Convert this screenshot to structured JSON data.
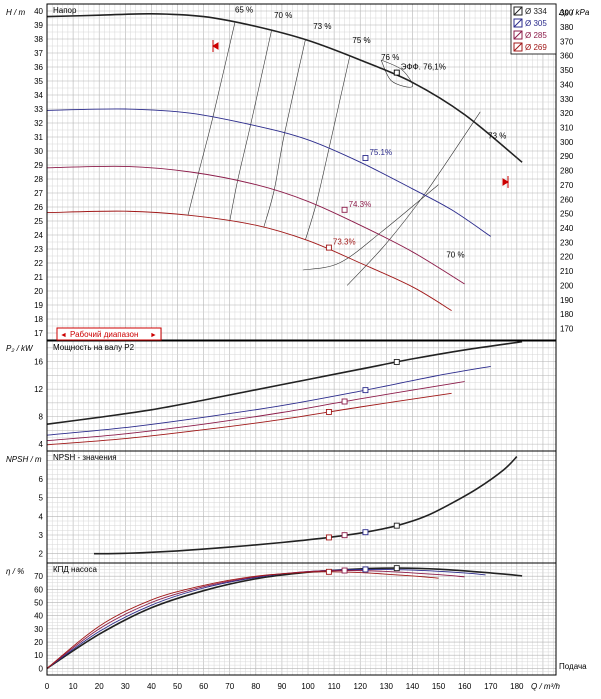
{
  "chart_data": [
    {
      "type": "line",
      "title": "Напор",
      "ylabel": "H / m",
      "ylabel_right": "Δp / kPa",
      "ylim": [
        16.5,
        40.5
      ],
      "ylim_right": [
        162,
        396
      ],
      "y_ticks": [
        17,
        18,
        19,
        20,
        21,
        22,
        23,
        24,
        25,
        26,
        27,
        28,
        29,
        30,
        31,
        32,
        33,
        34,
        35,
        36,
        37,
        38,
        39,
        40
      ],
      "y_ticks_right": [
        170,
        180,
        190,
        200,
        210,
        220,
        230,
        240,
        250,
        260,
        270,
        280,
        290,
        300,
        310,
        320,
        330,
        340,
        350,
        360,
        370,
        380,
        390
      ],
      "grid": true,
      "legend_position": "top-right",
      "legend": [
        {
          "label": "Ø 334",
          "color": "#222222"
        },
        {
          "label": "Ø 305",
          "color": "#2b2b8c"
        },
        {
          "label": "Ø 285",
          "color": "#8c1c4a"
        },
        {
          "label": "Ø 269",
          "color": "#a01818"
        }
      ],
      "series": [
        {
          "name": "Ø 334",
          "color": "#222222",
          "x": [
            0,
            20,
            40,
            60,
            80,
            100,
            120,
            140,
            160,
            182
          ],
          "y": [
            39.6,
            39.7,
            39.8,
            39.6,
            38.9,
            37.9,
            36.5,
            34.9,
            32.6,
            29.2
          ]
        },
        {
          "name": "Ø 305",
          "color": "#2b2b8c",
          "x": [
            0,
            30,
            55,
            80,
            100,
            120,
            140,
            155,
            170
          ],
          "y": [
            32.9,
            33.0,
            32.7,
            31.8,
            30.8,
            29.2,
            27.3,
            25.8,
            23.9
          ]
        },
        {
          "name": "Ø 285",
          "color": "#8c1c4a",
          "x": [
            0,
            30,
            55,
            80,
            100,
            120,
            140,
            160
          ],
          "y": [
            28.8,
            28.9,
            28.5,
            27.6,
            26.4,
            24.7,
            22.8,
            20.5
          ]
        },
        {
          "name": "Ø 269",
          "color": "#a01818",
          "x": [
            0,
            30,
            55,
            80,
            100,
            120,
            140,
            155
          ],
          "y": [
            25.6,
            25.7,
            25.4,
            24.7,
            23.6,
            22.0,
            20.3,
            18.6
          ]
        }
      ],
      "efficiency_labels": [
        {
          "text": "65 %",
          "x": 72,
          "y": 39.9
        },
        {
          "text": "70 %",
          "x": 87,
          "y": 39.5
        },
        {
          "text": "73 %",
          "x": 102,
          "y": 38.7
        },
        {
          "text": "75 %",
          "x": 117,
          "y": 37.7
        },
        {
          "text": "76 %",
          "x": 128,
          "y": 36.5
        },
        {
          "text": "73 %",
          "x": 169,
          "y": 30.9
        },
        {
          "text": "70 %",
          "x": 153,
          "y": 22.4
        }
      ],
      "bep_labels": [
        {
          "text": "ЭФФ. 76,1%",
          "x": 134,
          "y": 35.6
        },
        {
          "text": "75.1%",
          "x": 122,
          "y": 29.5
        },
        {
          "text": "74.3%",
          "x": 114,
          "y": 25.8
        },
        {
          "text": "73.3%",
          "x": 108,
          "y": 23.1
        }
      ],
      "operating_range_label": "Рабочий диапазон",
      "operating_range_arrows": [
        "◄",
        "►"
      ]
    },
    {
      "type": "line",
      "title": "Мощность на валу P2",
      "ylabel": "P₂ / kW",
      "ylim": [
        3,
        19
      ],
      "y_ticks": [
        4,
        8,
        12,
        16
      ],
      "grid": true,
      "series": [
        {
          "name": "Ø 334",
          "color": "#222222",
          "x": [
            0,
            20,
            40,
            60,
            80,
            100,
            120,
            140,
            160,
            182
          ],
          "y": [
            6.9,
            7.9,
            9.0,
            10.4,
            11.9,
            13.4,
            14.9,
            16.4,
            17.7,
            18.9
          ]
        },
        {
          "name": "Ø 305",
          "color": "#2b2b8c",
          "x": [
            0,
            30,
            60,
            90,
            120,
            150,
            170
          ],
          "y": [
            5.3,
            6.4,
            7.9,
            9.6,
            11.7,
            14.0,
            15.3
          ]
        },
        {
          "name": "Ø 285",
          "color": "#8c1c4a",
          "x": [
            0,
            30,
            60,
            90,
            120,
            160
          ],
          "y": [
            4.5,
            5.5,
            6.9,
            8.6,
            10.6,
            13.1
          ]
        },
        {
          "name": "Ø 269",
          "color": "#a01818",
          "x": [
            0,
            30,
            60,
            90,
            120,
            155
          ],
          "y": [
            3.9,
            4.8,
            6.1,
            7.6,
            9.4,
            11.4
          ]
        }
      ]
    },
    {
      "type": "line",
      "title": "NPSH - значения",
      "ylabel": "NPSH / m",
      "ylim": [
        1.5,
        7.5
      ],
      "y_ticks": [
        2,
        3,
        4,
        5,
        6
      ],
      "grid": true,
      "series": [
        {
          "name": "Ø 334",
          "color": "#222222",
          "x": [
            18,
            30,
            50,
            70,
            90,
            108,
            122,
            134,
            145,
            155,
            165,
            175,
            180
          ],
          "y": [
            2.0,
            2.02,
            2.15,
            2.35,
            2.6,
            2.87,
            3.15,
            3.5,
            4.0,
            4.7,
            5.5,
            6.5,
            7.2
          ]
        }
      ]
    },
    {
      "type": "line",
      "title": "КПД насоса",
      "ylabel": "η / %",
      "ylim": [
        -5,
        80
      ],
      "y_ticks": [
        0,
        10,
        20,
        30,
        40,
        50,
        60,
        70
      ],
      "grid": true,
      "xlabel": "Подача",
      "xlabel_unit": "Q / m³/h",
      "x_ticks": [
        0,
        10,
        20,
        30,
        40,
        50,
        60,
        70,
        80,
        90,
        100,
        110,
        120,
        130,
        140,
        150,
        160,
        170,
        180
      ],
      "xlim": [
        0,
        195
      ],
      "series": [
        {
          "name": "Ø 334",
          "color": "#222222",
          "x": [
            0,
            20,
            40,
            60,
            80,
            100,
            120,
            134,
            150,
            170,
            182
          ],
          "y": [
            0,
            26,
            46,
            59,
            68,
            73,
            75.5,
            76.1,
            75.3,
            72.5,
            70.2
          ]
        },
        {
          "name": "Ø 305",
          "color": "#2b2b8c",
          "x": [
            0,
            20,
            40,
            60,
            80,
            100,
            122,
            140,
            160,
            168
          ],
          "y": [
            0,
            28,
            48,
            61,
            69,
            73.5,
            75.1,
            74.6,
            72.5,
            71
          ]
        },
        {
          "name": "Ø 285",
          "color": "#8c1c4a",
          "x": [
            0,
            20,
            40,
            60,
            80,
            100,
            114,
            130,
            150,
            160
          ],
          "y": [
            0,
            30,
            50,
            62,
            69.5,
            73.5,
            74.3,
            73.6,
            71.2,
            69.5
          ]
        },
        {
          "name": "Ø 269",
          "color": "#a01818",
          "x": [
            0,
            20,
            40,
            60,
            80,
            100,
            108,
            120,
            140,
            150
          ],
          "y": [
            0,
            32,
            52,
            63,
            70,
            73,
            73.3,
            72.7,
            70.2,
            68.5
          ]
        }
      ]
    }
  ]
}
